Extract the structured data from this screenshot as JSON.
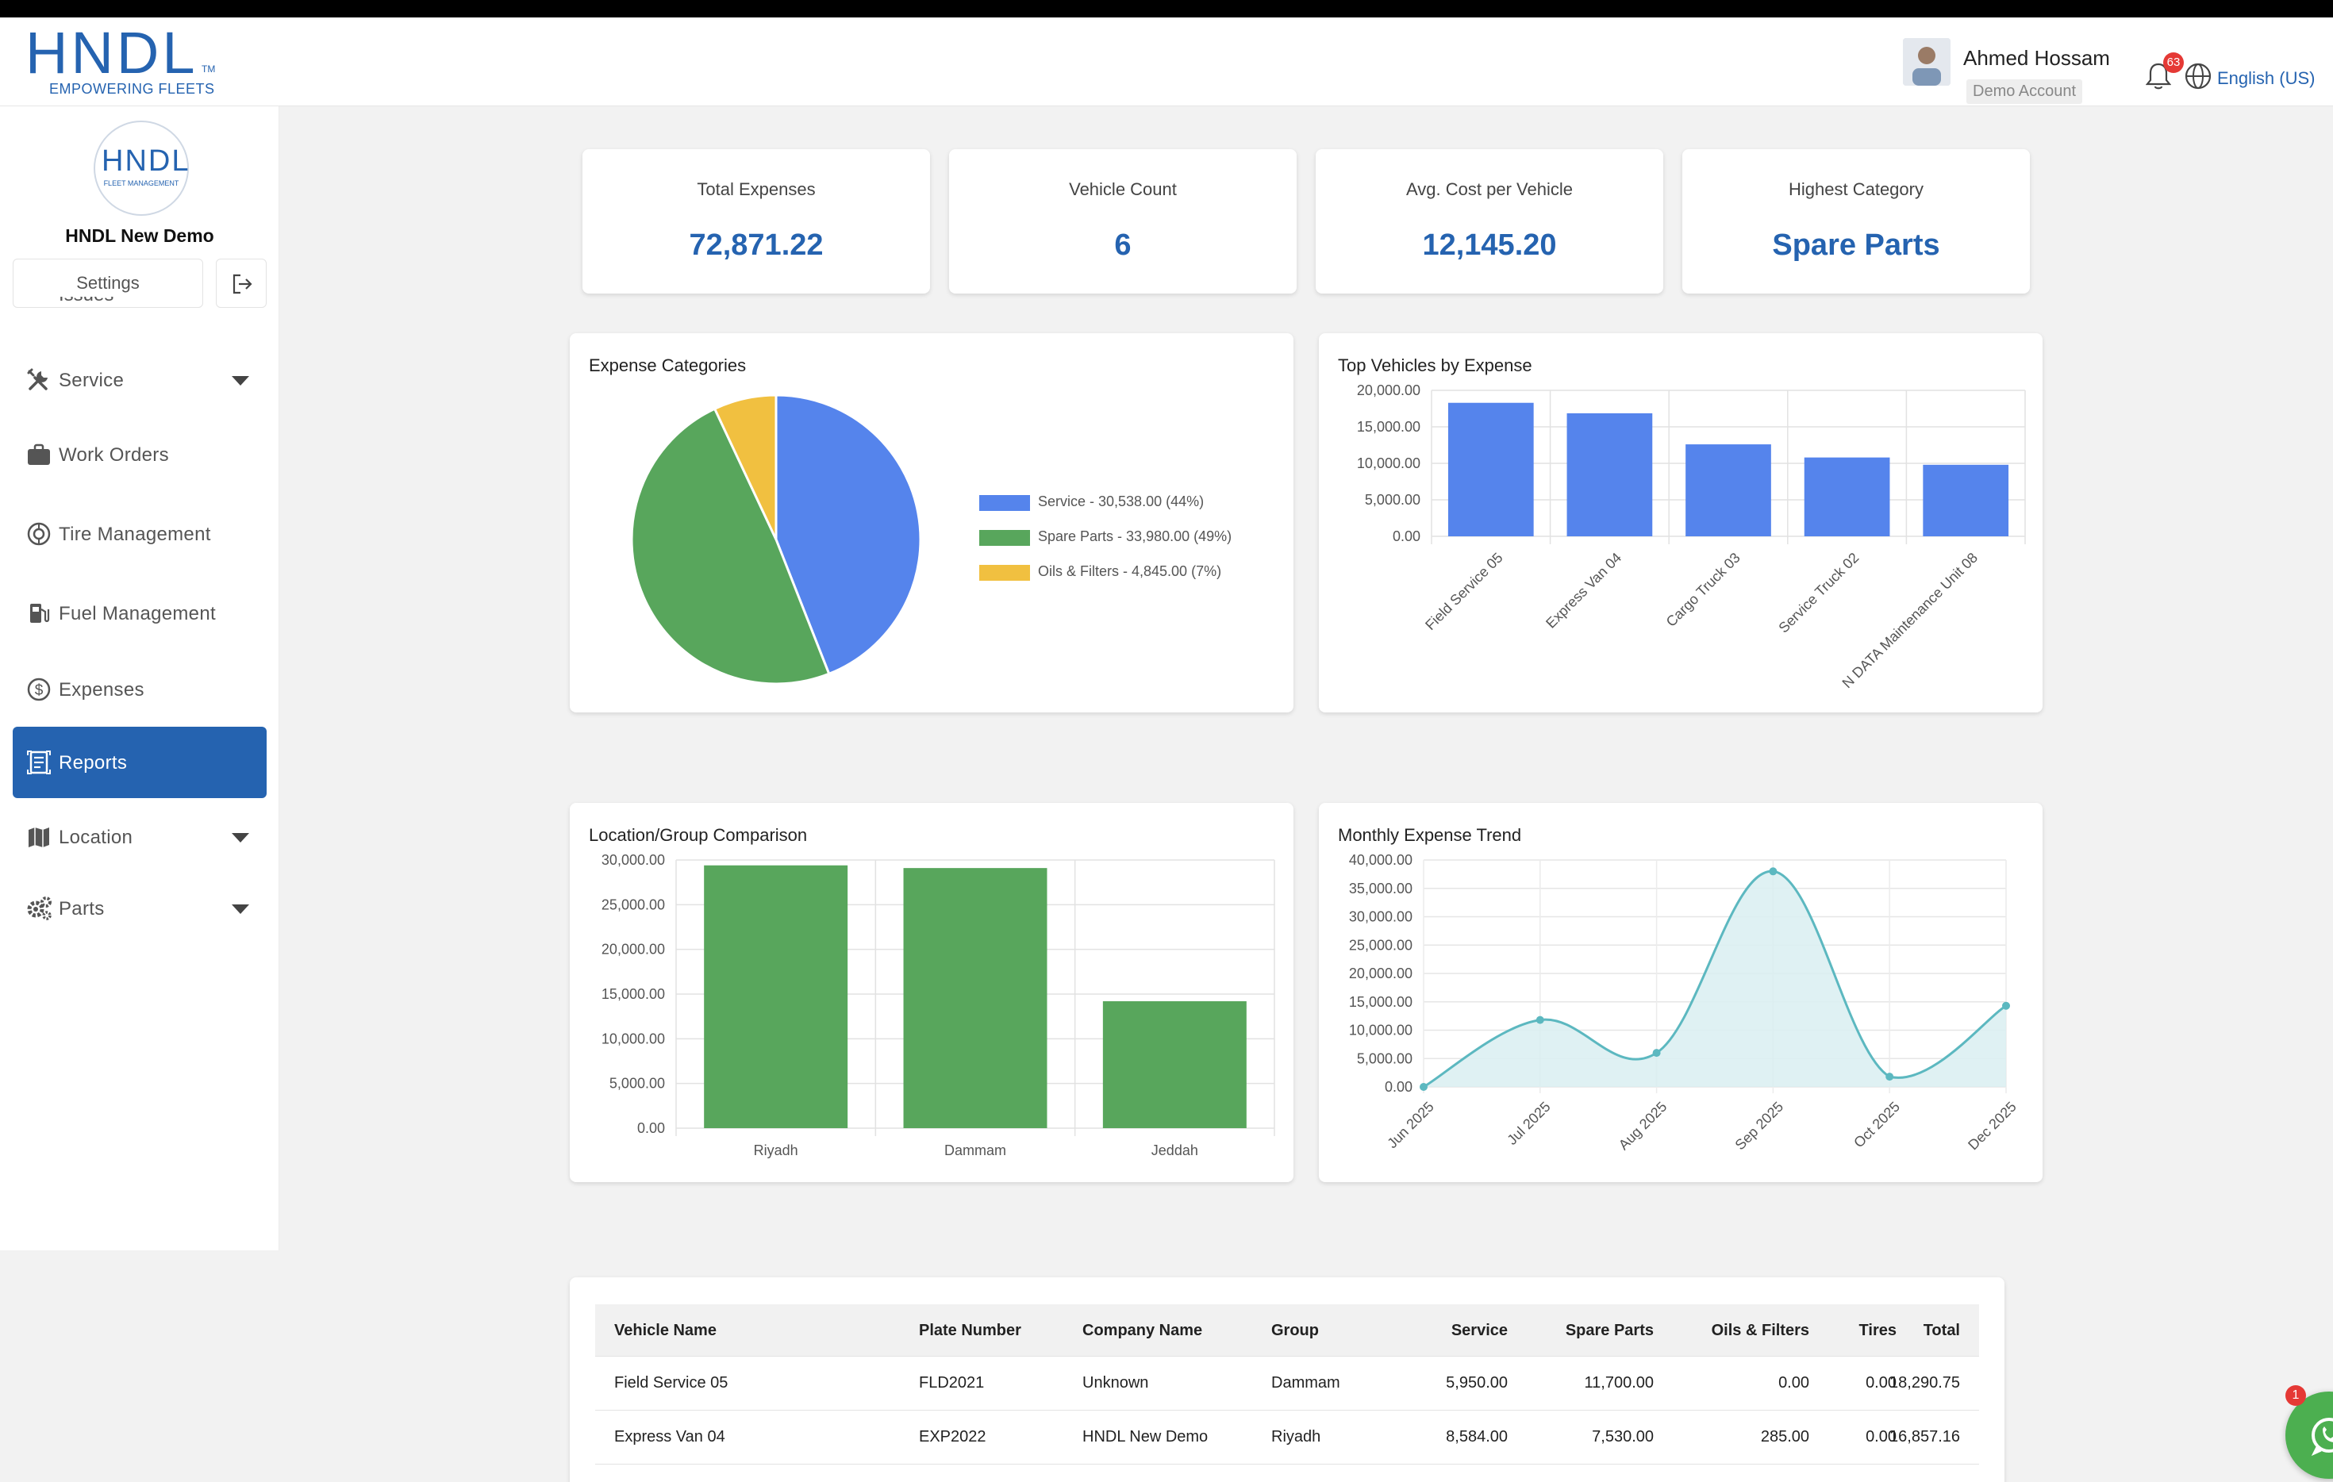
{
  "header": {
    "logo_text": "HNDL",
    "logo_tm": "TM",
    "logo_tagline": "EMPOWERING FLEETS",
    "user_name": "Ahmed Hossam",
    "user_role": "Demo Account",
    "notifications_count": "63",
    "language": "English (US)"
  },
  "sidebar": {
    "org_logo_text": "HNDL",
    "org_logo_sub": "FLEET MANAGEMENT",
    "org_name": "HNDL New Demo",
    "settings_label": "Settings",
    "cut_item_label": "Issues",
    "items": [
      {
        "label": "Service",
        "icon": "tools-icon",
        "expandable": true
      },
      {
        "label": "Work Orders",
        "icon": "briefcase-icon",
        "expandable": false
      },
      {
        "label": "Tire Management",
        "icon": "tire-icon",
        "expandable": false
      },
      {
        "label": "Fuel Management",
        "icon": "fuel-pump-icon",
        "expandable": false
      },
      {
        "label": "Expenses",
        "icon": "dollar-circle-icon",
        "expandable": false
      },
      {
        "label": "Reports",
        "icon": "report-icon",
        "expandable": false,
        "active": true
      },
      {
        "label": "Location",
        "icon": "map-icon",
        "expandable": true
      },
      {
        "label": "Parts",
        "icon": "gears-icon",
        "expandable": true
      }
    ]
  },
  "kpis": [
    {
      "label": "Total Expenses",
      "value": "72,871.22"
    },
    {
      "label": "Vehicle Count",
      "value": "6"
    },
    {
      "label": "Avg. Cost per Vehicle",
      "value": "12,145.20"
    },
    {
      "label": "Highest Category",
      "value": "Spare Parts"
    }
  ],
  "colors": {
    "primary": "#2563b0",
    "bar_blue": "#5584ec",
    "bar_green": "#58a65c",
    "pie_yellow": "#f1c040",
    "line_teal": "#5cb8c0",
    "line_fill": "#d9eef1"
  },
  "chart_data": [
    {
      "type": "pie",
      "title": "Expense Categories",
      "slices": [
        {
          "label": "Service - 30,538.00 (44%)",
          "name": "Service",
          "value": 30538.0,
          "color": "#5584ec"
        },
        {
          "label": "Spare Parts - 33,980.00 (49%)",
          "name": "Spare Parts",
          "value": 33980.0,
          "color": "#58a65c"
        },
        {
          "label": "Oils & Filters - 4,845.00 (7%)",
          "name": "Oils & Filters",
          "value": 4845.0,
          "color": "#f1c040"
        }
      ],
      "legend": "right"
    },
    {
      "type": "bar",
      "title": "Top Vehicles by Expense",
      "categories": [
        "Field Service 05",
        "Express Van 04",
        "Cargo Truck 03",
        "Service Truck 02",
        "N DATA Maintenance Unit 08"
      ],
      "values": [
        18290.75,
        16857.16,
        12600,
        10800,
        9800
      ],
      "ylim": [
        0,
        20000
      ],
      "yticks": [
        "20,000.00",
        "15,000.00",
        "10,000.00",
        "5,000.00",
        "0.00"
      ],
      "grid": true
    },
    {
      "type": "bar",
      "title": "Location/Group Comparison",
      "categories": [
        "Riyadh",
        "Dammam",
        "Jeddah"
      ],
      "values": [
        29400,
        29100,
        14200
      ],
      "ylim": [
        0,
        30000
      ],
      "yticks": [
        "30,000.00",
        "25,000.00",
        "20,000.00",
        "15,000.00",
        "10,000.00",
        "5,000.00",
        "0.00"
      ],
      "grid": true
    },
    {
      "type": "area",
      "title": "Monthly Expense Trend",
      "x": [
        "Jun 2025",
        "Jul 2025",
        "Aug 2025",
        "Sep 2025",
        "Oct 2025",
        "Dec 2025"
      ],
      "values": [
        0,
        11800,
        6000,
        38000,
        1800,
        14300
      ],
      "ylim": [
        0,
        40000
      ],
      "yticks": [
        "40,000.00",
        "35,000.00",
        "30,000.00",
        "25,000.00",
        "20,000.00",
        "15,000.00",
        "10,000.00",
        "5,000.00",
        "0.00"
      ],
      "grid": true
    }
  ],
  "table": {
    "columns": [
      "Vehicle Name",
      "Plate Number",
      "Company Name",
      "Group",
      "Service",
      "Spare Parts",
      "Oils & Filters",
      "Tires",
      "Total"
    ],
    "rows": [
      [
        "Field Service 05",
        "FLD2021",
        "Unknown",
        "Dammam",
        "5,950.00",
        "11,700.00",
        "0.00",
        "0.00",
        "18,290.75"
      ],
      [
        "Express Van 04",
        "EXP2022",
        "HNDL New Demo",
        "Riyadh",
        "8,584.00",
        "7,530.00",
        "285.00",
        "0.00",
        "16,857.16"
      ]
    ]
  },
  "chat": {
    "badge": "1",
    "icon": "whatsapp-icon"
  }
}
